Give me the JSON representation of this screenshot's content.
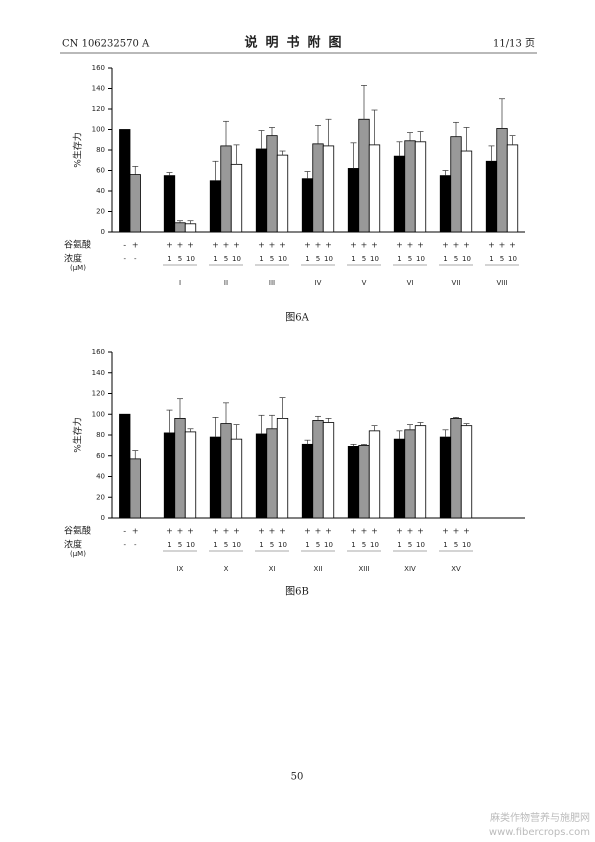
{
  "header": {
    "number": "CN 106232570 A",
    "title": "说明书附图",
    "page": "11/13 页"
  },
  "page_number": "50",
  "watermark": [
    "麻类作物营养与施肥网",
    "www.fibercrops.com"
  ],
  "chart_data": [
    {
      "type": "bar",
      "caption": "图6A",
      "y_label": "%生存力",
      "ylim": [
        0,
        160
      ],
      "yticks": [
        0,
        20,
        40,
        60,
        80,
        100,
        120,
        140,
        160
      ],
      "row_labels": [
        "谷氨酸",
        "浓度",
        "(μM)"
      ],
      "categories": [
        null,
        "I",
        "II",
        "III",
        "IV",
        "V",
        "VI",
        "VII",
        "VIII"
      ],
      "glutamate": [
        [
          "-",
          "+",
          null
        ],
        [
          "+",
          "+",
          "+"
        ],
        [
          "+",
          "+",
          "+"
        ],
        [
          "+",
          "+",
          "+"
        ],
        [
          "+",
          "+",
          "+"
        ],
        [
          "+",
          "+",
          "+"
        ],
        [
          "+",
          "+",
          "+"
        ],
        [
          "+",
          "+",
          "+"
        ],
        [
          "+",
          "+",
          "+"
        ]
      ],
      "concentration": [
        [
          "-",
          "-",
          null
        ],
        [
          "1",
          "5",
          "10"
        ],
        [
          "1",
          "5",
          "10"
        ],
        [
          "1",
          "5",
          "10"
        ],
        [
          "1",
          "5",
          "10"
        ],
        [
          "1",
          "5",
          "10"
        ],
        [
          "1",
          "5",
          "10"
        ],
        [
          "1",
          "5",
          "10"
        ],
        [
          "1",
          "5",
          "10"
        ]
      ],
      "series": [
        {
          "color": "#000000",
          "values": [
            100,
            55,
            50,
            81,
            52,
            62,
            74,
            55,
            69
          ],
          "errors": [
            null,
            3,
            19,
            18,
            7,
            25,
            14,
            5,
            15
          ]
        },
        {
          "color": "#999999",
          "values": [
            56,
            9,
            84,
            94,
            86,
            110,
            89,
            93,
            101
          ],
          "errors": [
            8,
            2,
            24,
            8,
            18,
            33,
            8,
            14,
            29
          ]
        },
        {
          "color": "#ffffff",
          "values": [
            null,
            8,
            66,
            75,
            84,
            85,
            88,
            79,
            85
          ],
          "errors": [
            null,
            3,
            19,
            4,
            26,
            34,
            10,
            23,
            9
          ]
        }
      ]
    },
    {
      "type": "bar",
      "caption": "图6B",
      "y_label": "%生存力",
      "ylim": [
        0,
        160
      ],
      "yticks": [
        0,
        20,
        40,
        60,
        80,
        100,
        120,
        140,
        160
      ],
      "row_labels": [
        "谷氨酸",
        "浓度",
        "(μM)"
      ],
      "categories": [
        null,
        "IX",
        "X",
        "XI",
        "XII",
        "XIII",
        "XIV",
        "XV"
      ],
      "glutamate": [
        [
          "-",
          "+",
          null
        ],
        [
          "+",
          "+",
          "+"
        ],
        [
          "+",
          "+",
          "+"
        ],
        [
          "+",
          "+",
          "+"
        ],
        [
          "+",
          "+",
          "+"
        ],
        [
          "+",
          "+",
          "+"
        ],
        [
          "+",
          "+",
          "+"
        ],
        [
          "+",
          "+",
          "+"
        ]
      ],
      "concentration": [
        [
          "-",
          "-",
          null
        ],
        [
          "1",
          "5",
          "10"
        ],
        [
          "1",
          "5",
          "10"
        ],
        [
          "1",
          "5",
          "10"
        ],
        [
          "1",
          "5",
          "10"
        ],
        [
          "1",
          "5",
          "10"
        ],
        [
          "1",
          "5",
          "10"
        ],
        [
          "1",
          "5",
          "10"
        ]
      ],
      "series": [
        {
          "color": "#000000",
          "values": [
            100,
            82,
            78,
            81,
            71,
            69,
            76,
            78
          ],
          "errors": [
            null,
            22,
            19,
            18,
            4,
            2,
            8,
            7
          ]
        },
        {
          "color": "#999999",
          "values": [
            57,
            96,
            91,
            86,
            94,
            70,
            85,
            96
          ],
          "errors": [
            8,
            19,
            20,
            13,
            4,
            1,
            5,
            1
          ]
        },
        {
          "color": "#ffffff",
          "values": [
            null,
            83,
            76,
            96,
            92,
            84,
            89,
            89
          ],
          "errors": [
            null,
            3,
            14,
            20,
            4,
            5,
            3,
            2
          ]
        }
      ]
    }
  ]
}
